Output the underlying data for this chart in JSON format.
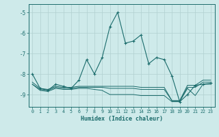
{
  "xlabel": "Humidex (Indice chaleur)",
  "bg_color": "#ceeaea",
  "grid_color": "#b0d0d0",
  "line_color": "#1a6b6b",
  "xlim": [
    -0.5,
    23.5
  ],
  "ylim": [
    -9.6,
    -4.6
  ],
  "yticks": [
    -9,
    -8,
    -7,
    -6,
    -5
  ],
  "xticks": [
    0,
    1,
    2,
    3,
    4,
    5,
    6,
    7,
    8,
    9,
    10,
    11,
    12,
    13,
    14,
    15,
    16,
    17,
    18,
    19,
    20,
    21,
    22,
    23
  ],
  "series1_x": [
    0,
    1,
    2,
    3,
    4,
    5,
    6,
    7,
    8,
    9,
    10,
    11,
    12,
    13,
    14,
    15,
    16,
    17,
    18,
    19,
    20,
    21,
    22,
    23
  ],
  "series1_y": [
    -8.0,
    -8.7,
    -8.8,
    -8.5,
    -8.6,
    -8.7,
    -8.3,
    -7.3,
    -8.0,
    -7.2,
    -5.7,
    -5.0,
    -6.5,
    -6.4,
    -6.1,
    -7.5,
    -7.2,
    -7.3,
    -8.1,
    -9.35,
    -9.0,
    -8.55,
    -8.5,
    -8.45
  ],
  "series2_x": [
    0,
    1,
    2,
    3,
    4,
    5,
    6,
    7,
    8,
    9,
    10,
    11,
    12,
    13,
    14,
    15,
    16,
    17,
    18,
    19,
    20,
    21,
    22,
    23
  ],
  "series2_y": [
    -8.4,
    -8.7,
    -8.75,
    -8.6,
    -8.65,
    -8.65,
    -8.6,
    -8.6,
    -8.6,
    -8.6,
    -8.6,
    -8.6,
    -8.6,
    -8.6,
    -8.65,
    -8.65,
    -8.65,
    -8.65,
    -9.3,
    -9.3,
    -8.55,
    -8.55,
    -8.3,
    -8.3
  ],
  "series3_x": [
    0,
    1,
    2,
    3,
    4,
    5,
    6,
    7,
    8,
    9,
    10,
    11,
    12,
    13,
    14,
    15,
    16,
    17,
    18,
    19,
    20,
    21,
    22,
    23
  ],
  "series3_y": [
    -8.5,
    -8.75,
    -8.8,
    -8.65,
    -8.7,
    -8.7,
    -8.65,
    -8.65,
    -8.65,
    -8.65,
    -8.7,
    -8.7,
    -8.7,
    -8.7,
    -8.75,
    -8.75,
    -8.75,
    -8.75,
    -9.3,
    -9.3,
    -8.65,
    -8.65,
    -8.4,
    -8.4
  ],
  "series4_x": [
    0,
    1,
    2,
    3,
    4,
    5,
    6,
    7,
    8,
    9,
    10,
    11,
    12,
    13,
    14,
    15,
    16,
    17,
    18,
    19,
    20,
    21,
    22,
    23
  ],
  "series4_y": [
    -8.5,
    -8.8,
    -8.85,
    -8.7,
    -8.75,
    -8.75,
    -8.7,
    -8.7,
    -8.75,
    -8.8,
    -9.0,
    -9.0,
    -9.0,
    -9.0,
    -9.05,
    -9.05,
    -9.05,
    -9.05,
    -9.35,
    -9.35,
    -8.7,
    -9.05,
    -8.5,
    -8.5
  ]
}
